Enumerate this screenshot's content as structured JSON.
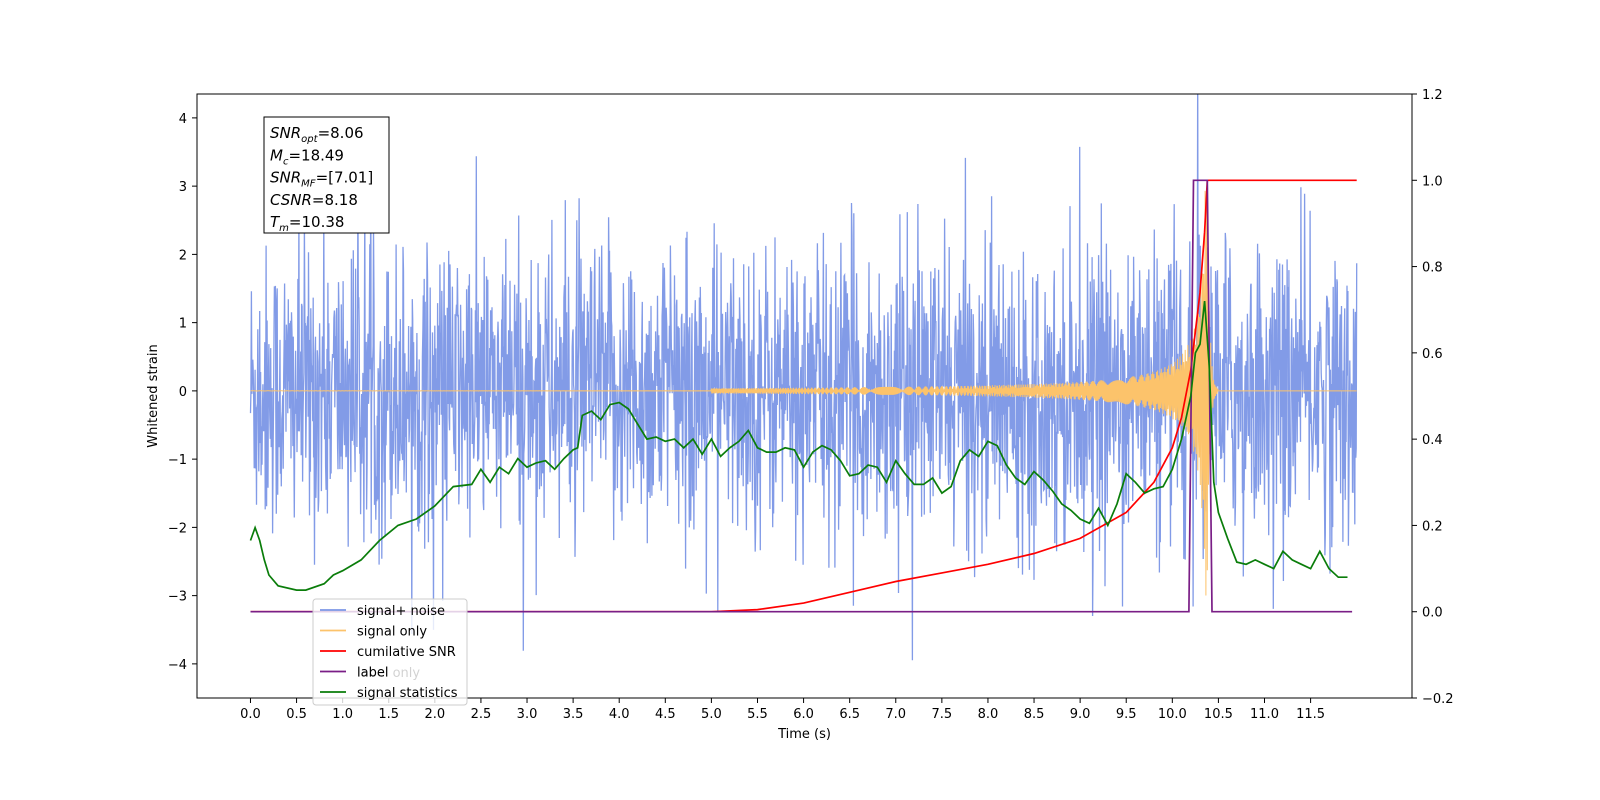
{
  "chart_data": {
    "type": "line",
    "xlabel": "Time (s)",
    "ylabel": "Whitened strain",
    "xlim": [
      -0.58,
      12.6
    ],
    "ylim_left": [
      -4.5,
      4.35
    ],
    "ylim_right": [
      -0.2,
      1.2
    ],
    "x_ticks": [
      0.0,
      0.5,
      1.0,
      1.5,
      2.0,
      2.5,
      3.0,
      3.5,
      4.0,
      4.5,
      5.0,
      5.5,
      6.0,
      6.5,
      7.0,
      7.5,
      8.0,
      8.5,
      9.0,
      9.5,
      10.0,
      10.5,
      11.0,
      11.5
    ],
    "x_tick_labels": [
      "0.0",
      "0.5",
      "1.0",
      "1.5",
      "2.0",
      "2.5",
      "3.0",
      "3.5",
      "4.0",
      "4.5",
      "5.0",
      "5.5",
      "6.0",
      "6.5",
      "7.0",
      "7.5",
      "8.0",
      "8.5",
      "9.0",
      "9.5",
      "10.0",
      "10.5",
      "11.0",
      "11.5"
    ],
    "y_left_ticks": [
      4,
      3,
      2,
      1,
      0,
      -1,
      -2,
      -3,
      -4
    ],
    "y_left_tick_labels": [
      "4",
      "3",
      "2",
      "1",
      "0",
      "−1",
      "−2",
      "−3",
      "−4"
    ],
    "y_right_ticks": [
      1.2,
      1.0,
      0.8,
      0.6,
      0.4,
      0.2,
      0.0,
      -0.2
    ],
    "y_right_tick_labels": [
      "1.2",
      "1.0",
      "0.8",
      "0.6",
      "0.4",
      "0.2",
      "0.0",
      "−0.2"
    ],
    "annotation": {
      "lines": [
        {
          "base": "SNR",
          "sub": "opt",
          "rest": "=8.06"
        },
        {
          "base": "M",
          "sub": "c",
          "rest": "=18.49"
        },
        {
          "base": "SNR",
          "sub": "MF",
          "rest": "=[7.01]"
        },
        {
          "base": "CSNR",
          "sub": "",
          "rest": "=8.18"
        },
        {
          "base": "T",
          "sub": "m",
          "rest": "=10.38"
        }
      ]
    },
    "legend": {
      "placement": "lower-left",
      "entries": [
        {
          "label": "signal+ noise",
          "color": "#7b96e6"
        },
        {
          "label": "signal only",
          "color": "#fcc36b"
        },
        {
          "label": "cumilative SNR",
          "color": "#ff0000"
        },
        {
          "label": "label",
          "color": "#7a1e86"
        },
        {
          "label": "signal statistics",
          "color": "#0a7d0a"
        }
      ],
      "hidden_label": "label only"
    },
    "series": [
      {
        "name": "signal+ noise",
        "axis": "left",
        "color": "#7b96e6",
        "t_range": [
          0.0,
          12.0
        ],
        "envelope": "noise between about -2.9 and 3.1, extremes near 3.95 and -4.1"
      },
      {
        "name": "signal only",
        "axis": "left",
        "color": "#fcc36b",
        "chirp_start": 5.0,
        "chirp_peak": 10.38,
        "peak_amplitude": 3.0
      },
      {
        "name": "cumilative SNR",
        "axis": "right",
        "color": "#ff0000",
        "x": [
          0.0,
          5.0,
          5.5,
          6.0,
          6.5,
          7.0,
          7.5,
          8.0,
          8.5,
          9.0,
          9.5,
          9.8,
          10.0,
          10.1,
          10.2,
          10.3,
          10.35,
          10.38,
          10.4,
          12.0
        ],
        "y": [
          0.0,
          0.0,
          0.005,
          0.02,
          0.045,
          0.07,
          0.09,
          0.11,
          0.135,
          0.17,
          0.23,
          0.3,
          0.38,
          0.45,
          0.56,
          0.74,
          0.88,
          1.0,
          1.0,
          1.0
        ]
      },
      {
        "name": "label",
        "axis": "right",
        "color": "#7a1e86",
        "x": [
          0.0,
          10.18,
          10.23,
          10.38,
          10.43,
          11.95
        ],
        "y": [
          0.0,
          0.0,
          1.0,
          1.0,
          0.0,
          0.0
        ]
      },
      {
        "name": "signal statistics",
        "axis": "right",
        "color": "#0a7d0a",
        "x": [
          0.0,
          0.05,
          0.1,
          0.15,
          0.2,
          0.3,
          0.5,
          0.6,
          0.8,
          0.9,
          1.0,
          1.2,
          1.4,
          1.6,
          1.8,
          2.0,
          2.2,
          2.4,
          2.5,
          2.6,
          2.7,
          2.8,
          2.9,
          3.0,
          3.1,
          3.2,
          3.3,
          3.4,
          3.5,
          3.55,
          3.6,
          3.7,
          3.8,
          3.9,
          4.0,
          4.1,
          4.2,
          4.3,
          4.4,
          4.5,
          4.6,
          4.7,
          4.8,
          4.9,
          5.0,
          5.1,
          5.2,
          5.3,
          5.4,
          5.5,
          5.6,
          5.7,
          5.8,
          5.9,
          6.0,
          6.1,
          6.2,
          6.3,
          6.4,
          6.5,
          6.6,
          6.7,
          6.8,
          6.9,
          7.0,
          7.1,
          7.2,
          7.3,
          7.4,
          7.5,
          7.6,
          7.7,
          7.8,
          7.9,
          8.0,
          8.1,
          8.2,
          8.3,
          8.4,
          8.5,
          8.6,
          8.7,
          8.8,
          8.9,
          9.0,
          9.1,
          9.2,
          9.3,
          9.4,
          9.5,
          9.6,
          9.7,
          9.8,
          9.9,
          10.0,
          10.1,
          10.2,
          10.25,
          10.3,
          10.35,
          10.4,
          10.45,
          10.5,
          10.6,
          10.7,
          10.8,
          10.9,
          11.0,
          11.1,
          11.2,
          11.3,
          11.4,
          11.5,
          11.6,
          11.7,
          11.8,
          11.9
        ],
        "y": [
          0.165,
          0.195,
          0.165,
          0.12,
          0.085,
          0.06,
          0.05,
          0.05,
          0.065,
          0.085,
          0.095,
          0.12,
          0.165,
          0.2,
          0.215,
          0.245,
          0.29,
          0.295,
          0.33,
          0.3,
          0.335,
          0.32,
          0.355,
          0.335,
          0.345,
          0.35,
          0.33,
          0.355,
          0.375,
          0.38,
          0.455,
          0.465,
          0.445,
          0.48,
          0.485,
          0.47,
          0.435,
          0.4,
          0.405,
          0.395,
          0.4,
          0.38,
          0.4,
          0.365,
          0.4,
          0.36,
          0.38,
          0.395,
          0.42,
          0.38,
          0.37,
          0.37,
          0.38,
          0.375,
          0.335,
          0.37,
          0.385,
          0.375,
          0.35,
          0.315,
          0.32,
          0.34,
          0.335,
          0.3,
          0.35,
          0.32,
          0.295,
          0.295,
          0.31,
          0.275,
          0.29,
          0.35,
          0.375,
          0.36,
          0.395,
          0.385,
          0.34,
          0.31,
          0.295,
          0.325,
          0.305,
          0.28,
          0.25,
          0.235,
          0.215,
          0.205,
          0.24,
          0.2,
          0.25,
          0.32,
          0.3,
          0.275,
          0.285,
          0.29,
          0.33,
          0.4,
          0.5,
          0.6,
          0.62,
          0.72,
          0.57,
          0.3,
          0.23,
          0.17,
          0.115,
          0.11,
          0.12,
          0.11,
          0.1,
          0.14,
          0.12,
          0.11,
          0.1,
          0.14,
          0.1,
          0.08,
          0.08
        ]
      }
    ]
  }
}
